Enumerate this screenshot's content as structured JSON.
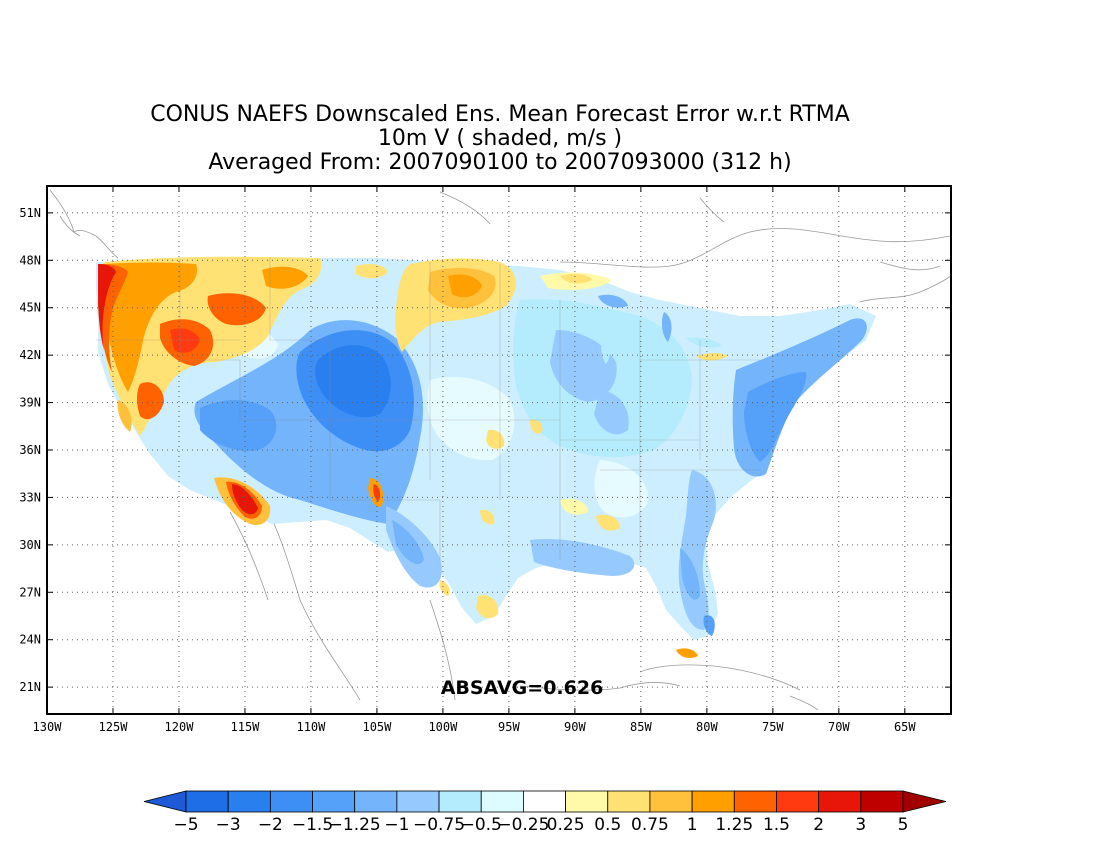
{
  "title": {
    "line1": "CONUS NAEFS Downscaled Ens. Mean Forecast Error w.r.t RTMA",
    "line2": "10m V ( shaded, m/s )",
    "line3": "Averaged From: 2007090100 to 2007093000 (312 h)"
  },
  "stat_label": "ABSAVG=0.626",
  "map": {
    "lon_ticks": [
      "130W",
      "125W",
      "120W",
      "115W",
      "110W",
      "105W",
      "100W",
      "95W",
      "90W",
      "85W",
      "80W",
      "75W",
      "70W",
      "65W"
    ],
    "lat_ticks": [
      "51N",
      "48N",
      "45N",
      "42N",
      "39N",
      "36N",
      "33N",
      "30N",
      "27N",
      "24N",
      "21N"
    ],
    "lon_range": [
      -130,
      -61.5
    ],
    "lat_range": [
      19.3,
      52.7
    ],
    "grid": "dotted"
  },
  "colorbar": {
    "labels": [
      "-5",
      "-3",
      "-2",
      "-1.5",
      "-1.25",
      "-1",
      "-0.75",
      "-0.5",
      "-0.25",
      "0.25",
      "0.5",
      "0.75",
      "1",
      "1.25",
      "1.5",
      "2",
      "3",
      "5"
    ],
    "colors": [
      "#1e6ee6",
      "#2a7fef",
      "#3d8ff5",
      "#55a0f8",
      "#73b4fa",
      "#96caff",
      "#b4ecfd",
      "#dcfcff",
      "#ffffff",
      "#fffaaa",
      "#ffe174",
      "#ffc13c",
      "#ffa000",
      "#ff6200",
      "#ff3a10",
      "#e81608",
      "#c00000"
    ],
    "left_arrow_color": "#1e5ad6",
    "right_arrow_color": "#a00000"
  }
}
